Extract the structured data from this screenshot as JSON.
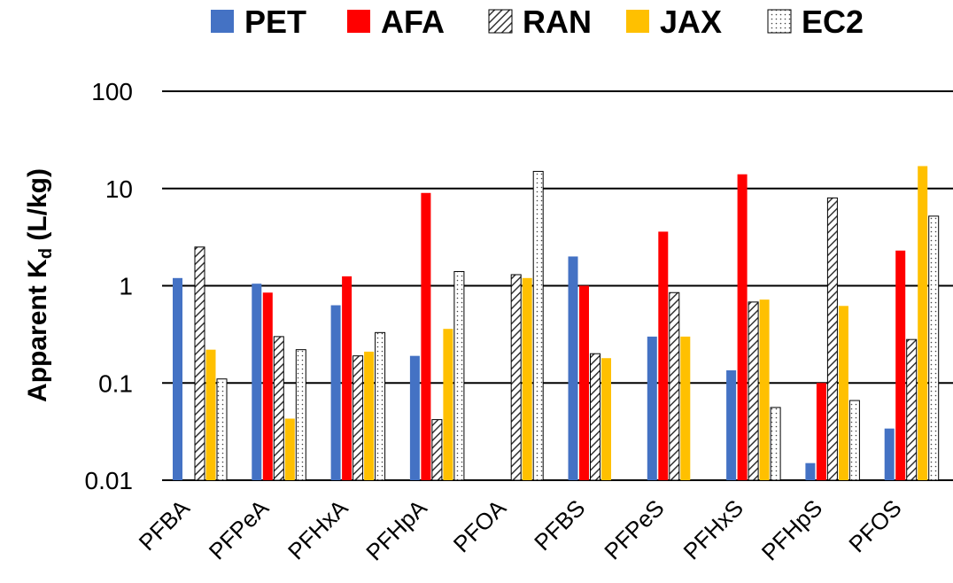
{
  "chart_data": {
    "type": "bar",
    "title": "",
    "xlabel": "",
    "ylabel": "Apparent K",
    "ylabel_subscript": "d",
    "ylabel_unit": " (L/kg)",
    "y_scale": "log",
    "ylim": [
      0.01,
      100
    ],
    "y_ticks": [
      "0.01",
      "0.1",
      "1",
      "10",
      "100"
    ],
    "grid": "horizontal",
    "legend_placement": "top",
    "categories": [
      "PFBA",
      "PFPeA",
      "PFHxA",
      "PFHpA",
      "PFOA",
      "PFBS",
      "PFPeS",
      "PFHxS",
      "PFHpS",
      "PFOS"
    ],
    "series": [
      {
        "name": "PET",
        "color": "#4472C4",
        "pattern": "solid",
        "values": [
          1.2,
          1.05,
          0.63,
          0.19,
          null,
          2.0,
          0.3,
          0.135,
          0.015,
          0.034
        ]
      },
      {
        "name": "AFA",
        "color": "#FF0000",
        "pattern": "solid",
        "values": [
          null,
          0.85,
          1.25,
          9.0,
          null,
          1.0,
          3.6,
          14.0,
          0.1,
          2.3
        ]
      },
      {
        "name": "RAN",
        "color": "#404040",
        "pattern": "diagonal-hatch",
        "values": [
          2.5,
          0.3,
          0.19,
          0.042,
          1.3,
          0.2,
          0.85,
          0.68,
          8.0,
          0.28
        ]
      },
      {
        "name": "JAX",
        "color": "#FFC000",
        "pattern": "solid",
        "values": [
          0.22,
          0.043,
          0.21,
          0.36,
          1.2,
          0.18,
          0.3,
          0.72,
          0.62,
          17.0
        ]
      },
      {
        "name": "EC2",
        "color": "#FFFFFF",
        "pattern": "dotted",
        "values": [
          0.11,
          0.22,
          0.33,
          1.4,
          15.0,
          null,
          null,
          0.056,
          0.066,
          5.2
        ]
      }
    ]
  }
}
